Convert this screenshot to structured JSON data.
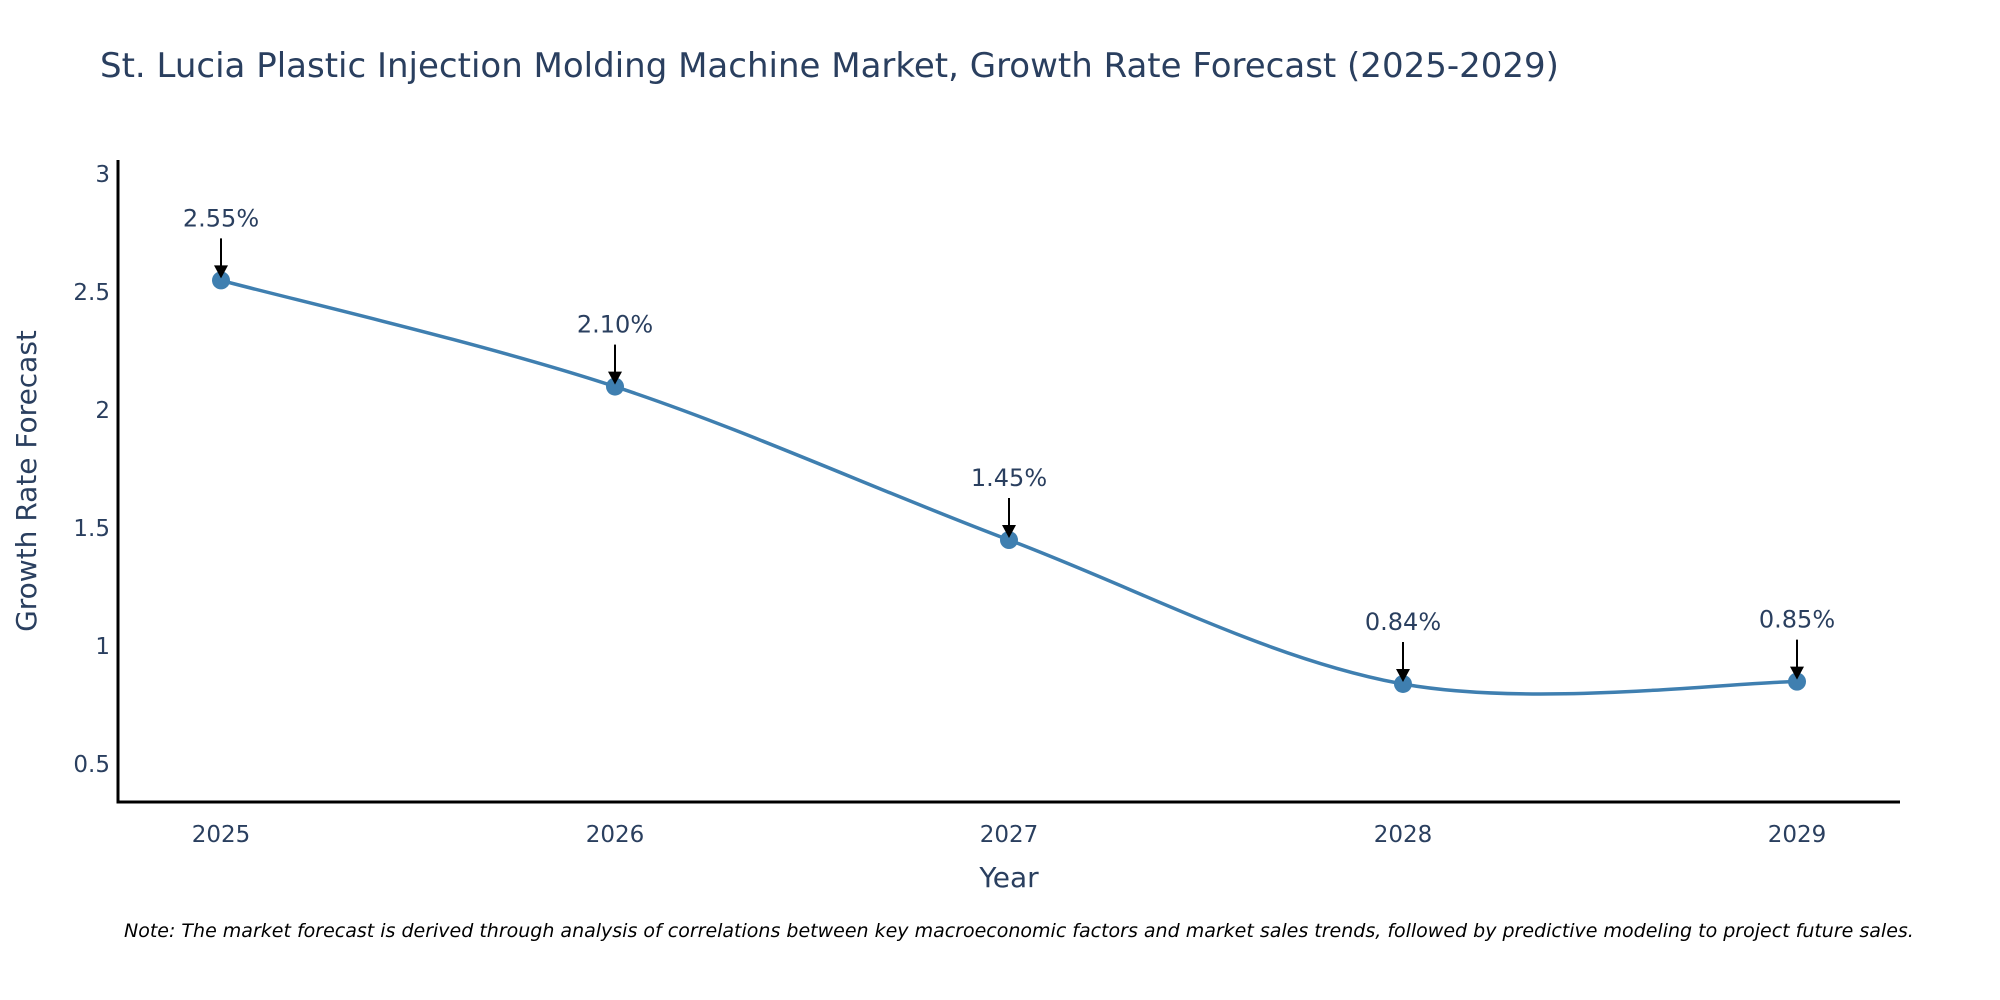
{
  "chart_data": {
    "type": "line",
    "title": "St. Lucia Plastic Injection Molding Machine Market, Growth Rate Forecast (2025-2029)",
    "xlabel": "Year",
    "ylabel": "Growth Rate Forecast",
    "categories": [
      "2025",
      "2026",
      "2027",
      "2028",
      "2029"
    ],
    "values": [
      2.55,
      2.1,
      1.45,
      0.84,
      0.85
    ],
    "data_labels": [
      "2.55%",
      "2.10%",
      "1.45%",
      "0.84%",
      "0.85%"
    ],
    "ylim": [
      0.34,
      3.06
    ],
    "yticks": [
      0.5,
      1,
      1.5,
      2,
      2.5,
      3
    ],
    "ytick_labels": [
      "0.5",
      "1",
      "1.5",
      "2",
      "2.5",
      "3"
    ],
    "grid": false,
    "line_shape": "spline",
    "annotations_with_arrows": true,
    "line_color": "#3f7fb0",
    "marker_color": "#3f7fb0"
  },
  "footnote": "Note: The market forecast is derived through analysis of correlations between key macroeconomic factors and market sales trends, followed by predictive modeling to project future sales."
}
